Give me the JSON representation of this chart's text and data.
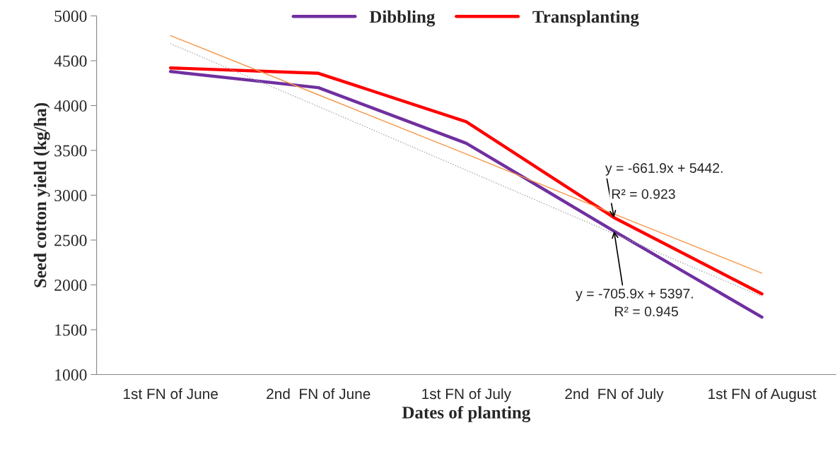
{
  "chart_data": {
    "type": "line",
    "xlabel": "Dates of planting",
    "ylabel": "Seed cotton yield (kg/ha)",
    "categories": [
      "1st FN of June",
      "2nd  FN of June",
      "1st FN of July",
      "2nd  FN of July",
      "1st FN of August"
    ],
    "series": [
      {
        "name": "Dibbling",
        "color": "#7030a0",
        "values": [
          4380,
          4200,
          3580,
          2600,
          1640
        ]
      },
      {
        "name": "Transplanting",
        "color": "#ff0000",
        "values": [
          4420,
          4360,
          3820,
          2750,
          1900
        ]
      },
      {
        "color": "#f79646",
        "line_style": "solid",
        "values": [
          4780,
          4120,
          3460,
          2790,
          2130
        ]
      },
      {
        "color": "#a6a6a6",
        "line_style": "dotted",
        "values": [
          4690,
          3990,
          3280,
          2570,
          1870
        ]
      }
    ],
    "ylim": [
      1000,
      5000
    ],
    "yticks": [
      1000,
      1500,
      2000,
      2500,
      3000,
      3500,
      4000,
      4500,
      5000
    ],
    "grid": false,
    "legend": "top",
    "marker": "none",
    "line_style": "solid",
    "annotations": [
      {
        "text": "y = -661.9x + 5442.",
        "x": "2nd  FN of July",
        "y": 2750
      },
      "R² = 0.923",
      {
        "text": "y = -705.9x + 5397.",
        "x": "2nd  FN of July",
        "y": 2600
      },
      "R² = 0.945"
    ]
  }
}
